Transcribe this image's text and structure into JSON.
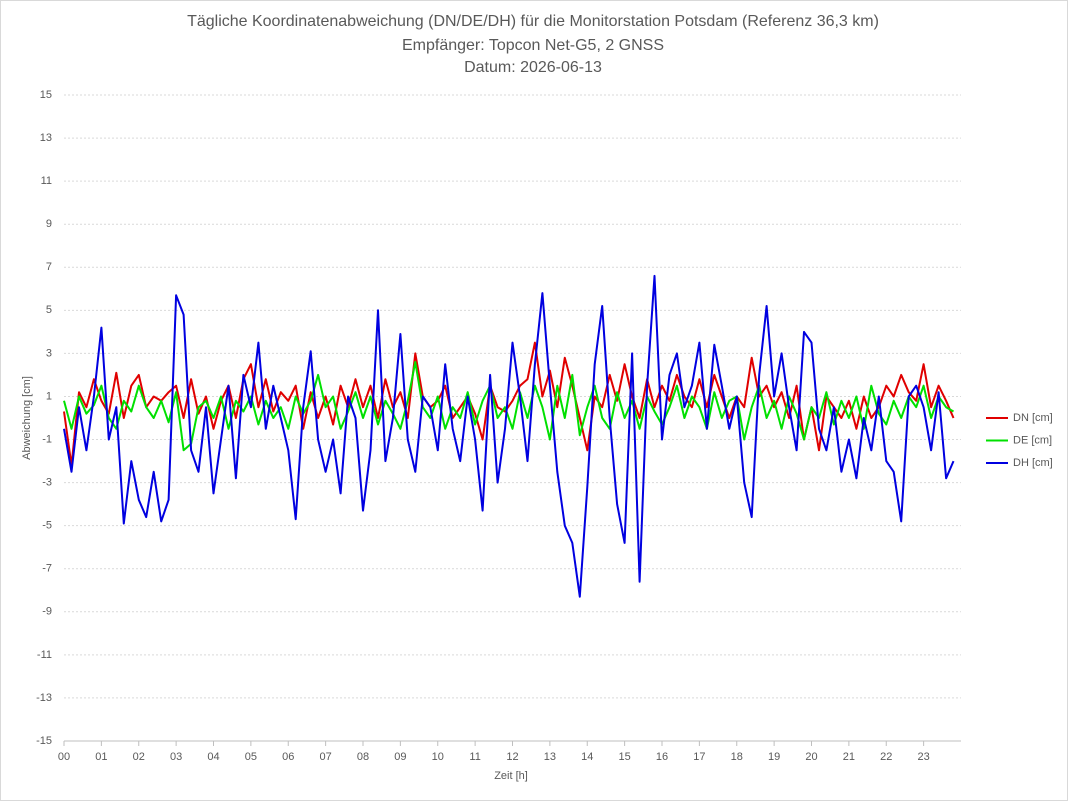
{
  "chart_data": {
    "type": "line",
    "title": [
      "Tägliche Koordinatenabweichung (DN/DE/DH) für die Monitorstation Potsdam (Referenz 36,3 km)",
      "Empfänger: Topcon Net-G5, 2 GNSS",
      "Datum: 2026-06-13"
    ],
    "xlabel": "Zeit [h]",
    "ylabel": "Abweichung [cm]",
    "x": [
      0,
      0.2,
      0.4,
      0.6,
      0.8,
      1,
      1.2,
      1.4,
      1.6,
      1.8,
      2,
      2.2,
      2.4,
      2.6,
      2.8,
      3,
      3.2,
      3.4,
      3.6,
      3.8,
      4,
      4.2,
      4.4,
      4.6,
      4.8,
      5,
      5.2,
      5.4,
      5.6,
      5.8,
      6,
      6.2,
      6.4,
      6.6,
      6.8,
      7,
      7.2,
      7.4,
      7.6,
      7.8,
      8,
      8.2,
      8.4,
      8.6,
      8.8,
      9,
      9.2,
      9.4,
      9.6,
      9.8,
      10,
      10.2,
      10.4,
      10.6,
      10.8,
      11,
      11.2,
      11.4,
      11.6,
      11.8,
      12,
      12.2,
      12.4,
      12.6,
      12.8,
      13,
      13.2,
      13.4,
      13.6,
      13.8,
      14,
      14.2,
      14.4,
      14.6,
      14.8,
      15,
      15.2,
      15.4,
      15.6,
      15.8,
      16,
      16.2,
      16.4,
      16.6,
      16.8,
      17,
      17.2,
      17.4,
      17.6,
      17.8,
      18,
      18.2,
      18.4,
      18.6,
      18.8,
      19,
      19.2,
      19.4,
      19.6,
      19.8,
      20,
      20.2,
      20.4,
      20.6,
      20.8,
      21,
      21.2,
      21.4,
      21.6,
      21.8,
      22,
      22.2,
      22.4,
      22.6,
      22.8,
      23,
      23.2,
      23.4,
      23.6,
      23.8
    ],
    "series": [
      {
        "name": "DN [cm]",
        "color": "#e00000",
        "values": [
          0.3,
          -2.2,
          1.2,
          0.5,
          1.8,
          0.8,
          0.2,
          2.1,
          0.0,
          1.5,
          2.0,
          0.5,
          1.0,
          0.8,
          1.2,
          1.5,
          0.0,
          1.8,
          0.2,
          1.0,
          -0.5,
          0.8,
          1.5,
          0.0,
          1.8,
          2.5,
          0.5,
          1.8,
          0.3,
          1.2,
          0.8,
          1.5,
          -0.5,
          1.2,
          0.0,
          1.0,
          -0.3,
          1.5,
          0.5,
          1.8,
          0.5,
          1.5,
          0.0,
          1.8,
          0.5,
          1.2,
          0.0,
          3.0,
          1.0,
          0.5,
          0.8,
          1.5,
          0.0,
          0.5,
          1.0,
          0.2,
          -1.0,
          1.5,
          0.5,
          0.3,
          0.8,
          1.5,
          1.8,
          3.5,
          1.0,
          2.2,
          0.5,
          2.8,
          1.5,
          0.0,
          -1.5,
          1.0,
          0.5,
          2.0,
          0.8,
          2.5,
          1.0,
          0.0,
          1.8,
          0.5,
          1.5,
          0.8,
          2.0,
          1.0,
          0.5,
          1.8,
          0.5,
          2.0,
          1.0,
          0.0,
          1.0,
          0.5,
          2.8,
          1.0,
          1.5,
          0.5,
          1.2,
          0.0,
          1.5,
          -1.0,
          0.5,
          -1.5,
          1.0,
          0.5,
          0.0,
          0.8,
          -0.5,
          1.0,
          0.0,
          0.5,
          1.5,
          1.0,
          2.0,
          1.2,
          0.8,
          2.5,
          0.5,
          1.5,
          0.8,
          0.0
        ]
      },
      {
        "name": "DE [cm]",
        "color": "#00e000",
        "values": [
          0.8,
          -0.5,
          1.0,
          0.2,
          0.6,
          1.5,
          0.0,
          -0.5,
          0.8,
          0.3,
          1.5,
          0.5,
          0.0,
          0.8,
          -0.2,
          1.2,
          -1.5,
          -1.2,
          0.5,
          0.8,
          0.0,
          1.0,
          -0.5,
          0.8,
          0.3,
          1.0,
          -0.3,
          0.8,
          0.0,
          0.5,
          -0.5,
          1.0,
          0.2,
          0.8,
          2.0,
          0.5,
          1.0,
          -0.5,
          0.3,
          1.2,
          0.0,
          1.0,
          -0.3,
          0.8,
          0.2,
          -0.5,
          0.8,
          2.6,
          0.5,
          0.0,
          1.0,
          -0.5,
          0.5,
          0.0,
          1.2,
          -0.3,
          0.8,
          1.5,
          0.0,
          0.5,
          -0.5,
          1.2,
          0.0,
          1.5,
          0.5,
          -1.0,
          1.5,
          0.0,
          2.0,
          -0.8,
          0.5,
          1.5,
          0.0,
          -0.5,
          1.2,
          0.0,
          0.8,
          -0.5,
          1.0,
          0.3,
          -0.3,
          0.5,
          1.5,
          0.0,
          1.0,
          0.5,
          -0.5,
          1.2,
          0.0,
          0.8,
          1.0,
          -1.0,
          0.5,
          1.5,
          0.0,
          0.8,
          -0.5,
          1.0,
          0.2,
          -1.0,
          0.5,
          0.0,
          1.2,
          -0.3,
          0.8,
          0.0,
          1.0,
          -0.5,
          1.5,
          0.2,
          -0.3,
          0.8,
          0.0,
          1.0,
          0.5,
          1.5,
          0.0,
          1.0,
          0.5,
          0.3
        ]
      },
      {
        "name": "DH [cm]",
        "color": "#0000e0",
        "values": [
          -0.5,
          -2.5,
          0.5,
          -1.5,
          1.0,
          4.2,
          -1.0,
          0.5,
          -4.9,
          -2.0,
          -3.8,
          -4.6,
          -2.5,
          -4.8,
          -3.8,
          5.7,
          4.8,
          -1.5,
          -2.5,
          0.5,
          -3.5,
          -1.0,
          1.5,
          -2.8,
          2.0,
          0.5,
          3.5,
          -0.5,
          1.5,
          0.0,
          -1.5,
          -4.7,
          0.5,
          3.1,
          -1.0,
          -2.5,
          -1.0,
          -3.5,
          1.0,
          0.0,
          -4.3,
          -1.5,
          5.0,
          -2.0,
          0.0,
          3.9,
          -1.0,
          -2.5,
          1.0,
          0.5,
          -1.5,
          2.5,
          -0.5,
          -2.0,
          1.0,
          -1.0,
          -4.3,
          2.0,
          -3.0,
          -0.5,
          3.5,
          1.0,
          -2.0,
          2.5,
          5.8,
          1.5,
          -2.5,
          -5.0,
          -5.8,
          -8.3,
          -3.2,
          2.5,
          5.2,
          0.0,
          -4.0,
          -5.8,
          3.0,
          -7.6,
          1.5,
          6.6,
          -1.0,
          2.0,
          3.0,
          0.5,
          1.5,
          3.5,
          -0.5,
          3.4,
          1.5,
          -0.5,
          1.0,
          -3.0,
          -4.6,
          2.0,
          5.2,
          1.0,
          3.0,
          0.5,
          -1.5,
          4.0,
          3.5,
          -0.5,
          -1.5,
          0.5,
          -2.5,
          -1.0,
          -2.8,
          0.0,
          -1.5,
          1.0,
          -2.0,
          -2.5,
          -4.8,
          1.0,
          1.5,
          0.5,
          -1.5,
          1.2,
          -2.8,
          -2.0
        ]
      }
    ],
    "xlim": [
      0,
      24
    ],
    "xticks": [
      {
        "value": 0,
        "label": "00"
      },
      {
        "value": 1,
        "label": "01"
      },
      {
        "value": 2,
        "label": "02"
      },
      {
        "value": 3,
        "label": "03"
      },
      {
        "value": 4,
        "label": "04"
      },
      {
        "value": 5,
        "label": "05"
      },
      {
        "value": 6,
        "label": "06"
      },
      {
        "value": 7,
        "label": "07"
      },
      {
        "value": 8,
        "label": "08"
      },
      {
        "value": 9,
        "label": "09"
      },
      {
        "value": 10,
        "label": "10"
      },
      {
        "value": 11,
        "label": "11"
      },
      {
        "value": 12,
        "label": "12"
      },
      {
        "value": 13,
        "label": "13"
      },
      {
        "value": 14,
        "label": "14"
      },
      {
        "value": 15,
        "label": "15"
      },
      {
        "value": 16,
        "label": "16"
      },
      {
        "value": 17,
        "label": "17"
      },
      {
        "value": 18,
        "label": "18"
      },
      {
        "value": 19,
        "label": "19"
      },
      {
        "value": 20,
        "label": "20"
      },
      {
        "value": 21,
        "label": "21"
      },
      {
        "value": 22,
        "label": "22"
      },
      {
        "value": 23,
        "label": "23"
      }
    ],
    "ylim": [
      -15,
      15
    ],
    "yticks": [
      -15,
      -13,
      -11,
      -9,
      -7,
      -5,
      -3,
      -1,
      1,
      3,
      5,
      7,
      9,
      11,
      13,
      15
    ],
    "grid": true,
    "legend": "right"
  }
}
